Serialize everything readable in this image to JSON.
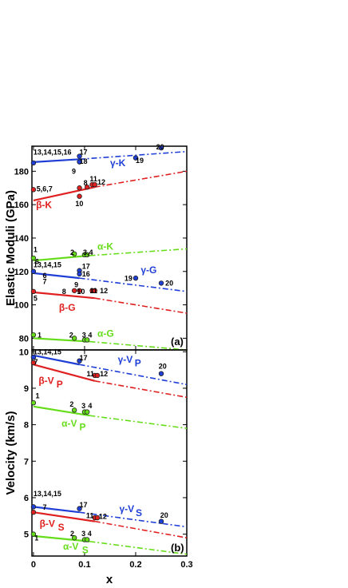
{
  "chart_data": [
    {
      "type": "line",
      "panel": "(a)",
      "ylabel": "Elastic Moduli (GPa)",
      "xlabel": "",
      "xlim": [
        -0.003,
        0.3
      ],
      "ylim": [
        73,
        195
      ],
      "xticks": [
        0,
        0.1,
        0.2,
        0.3
      ],
      "yticks": [
        80,
        100,
        120,
        140,
        160,
        180
      ],
      "xtick_labels": [
        "",
        "",
        "",
        ""
      ],
      "ytick_labels": [
        "80",
        "100",
        "120",
        "140",
        "160",
        "180"
      ],
      "series": [
        {
          "label": "γ-K",
          "color": "#1f3fd6",
          "solid": [
            [
              0,
              185.5
            ],
            [
              0.09,
              187.2
            ]
          ],
          "dashed": [
            [
              0.09,
              187.2
            ],
            [
              0.3,
              191.8
            ]
          ],
          "points": [
            [
              0,
              185
            ],
            [
              0.09,
              189
            ],
            [
              0.09,
              185.6
            ],
            [
              0.2,
              188
            ],
            [
              0.25,
              194
            ]
          ]
        },
        {
          "label": "β-K",
          "color": "#e02020",
          "solid": [
            [
              0,
              162.5
            ],
            [
              0.12,
              170.5
            ]
          ],
          "dashed": [
            [
              0.12,
              170.5
            ],
            [
              0.3,
              180
            ]
          ],
          "points": [
            [
              0,
              169
            ],
            [
              0.09,
              170
            ],
            [
              0.09,
              165
            ],
            [
              0.105,
              170.5
            ],
            [
              0.115,
              172
            ],
            [
              0.12,
              172
            ]
          ]
        },
        {
          "label": "α-K",
          "color": "#66dd1a",
          "solid": [
            [
              0,
              126.5
            ],
            [
              0.11,
              129.5
            ]
          ],
          "dashed": [
            [
              0.11,
              129.5
            ],
            [
              0.3,
              133.5
            ]
          ],
          "points": [
            [
              0,
              128
            ],
            [
              0.08,
              130.5
            ],
            [
              0.1,
              130
            ],
            [
              0.105,
              130
            ]
          ]
        },
        {
          "label": "γ-G",
          "color": "#1f3fd6",
          "solid": [
            [
              0,
              119
            ],
            [
              0.09,
              116
            ]
          ],
          "dashed": [
            [
              0.09,
              116
            ],
            [
              0.3,
              108
            ]
          ],
          "points": [
            [
              0,
              120
            ],
            [
              0.09,
              120.5
            ],
            [
              0.09,
              118.5
            ],
            [
              0.2,
              116
            ],
            [
              0.25,
              113
            ]
          ]
        },
        {
          "label": "β-G",
          "color": "#e02020",
          "solid": [
            [
              0,
              107.5
            ],
            [
              0.12,
              104
            ]
          ],
          "dashed": [
            [
              0.12,
              104
            ],
            [
              0.3,
              95
            ]
          ],
          "points": [
            [
              0,
              108
            ],
            [
              0.08,
              108.5
            ],
            [
              0.09,
              108.5
            ],
            [
              0.115,
              108.5
            ],
            [
              0.12,
              108.5
            ]
          ]
        },
        {
          "label": "α-G",
          "color": "#66dd1a",
          "solid": [
            [
              0,
              80
            ],
            [
              0.11,
              78
            ]
          ],
          "dashed": [
            [
              0.11,
              78
            ],
            [
              0.3,
              73
            ]
          ],
          "points": [
            [
              0,
              82
            ],
            [
              0.08,
              80
            ],
            [
              0.1,
              79
            ],
            [
              0.105,
              79
            ]
          ]
        }
      ],
      "annotations": [
        {
          "text": "13,14,15,16",
          "x": 0.0,
          "y": 190,
          "color": "#000"
        },
        {
          "text": "17",
          "x": 0.09,
          "y": 190,
          "color": "#000"
        },
        {
          "text": "18",
          "x": 0.09,
          "y": 184.5,
          "color": "#000"
        },
        {
          "text": "20",
          "x": 0.24,
          "y": 193,
          "color": "#000"
        },
        {
          "text": "19",
          "x": 0.2,
          "y": 185,
          "color": "#000"
        },
        {
          "text": "γ-K",
          "x": 0.15,
          "y": 183,
          "color": "#1f3fd6"
        },
        {
          "text": "9",
          "x": 0.075,
          "y": 178.5,
          "color": "#000"
        },
        {
          "text": "11",
          "x": 0.11,
          "y": 174,
          "color": "#000"
        },
        {
          "text": "8",
          "x": 0.098,
          "y": 171.5,
          "color": "#000"
        },
        {
          "text": "12",
          "x": 0.125,
          "y": 172,
          "color": "#000"
        },
        {
          "text": "5,6,7",
          "x": 0.006,
          "y": 168,
          "color": "#000"
        },
        {
          "text": "10",
          "x": 0.082,
          "y": 159,
          "color": "#000"
        },
        {
          "text": "β-K",
          "x": 0.005,
          "y": 158,
          "color": "#e02020"
        },
        {
          "text": "α-K",
          "x": 0.125,
          "y": 133,
          "color": "#66dd1a"
        },
        {
          "text": "1",
          "x": 0.0,
          "y": 131.5,
          "color": "#000"
        },
        {
          "text": "6",
          "x": 0.003,
          "y": 124.5,
          "color": "#000"
        },
        {
          "text": "2",
          "x": 0.072,
          "y": 130,
          "color": "#000"
        },
        {
          "text": "3,4",
          "x": 0.097,
          "y": 130,
          "color": "#000"
        },
        {
          "text": "13,14,15",
          "x": 0.0,
          "y": 122.5,
          "color": "#000"
        },
        {
          "text": "17",
          "x": 0.095,
          "y": 121.5,
          "color": "#000"
        },
        {
          "text": "16",
          "x": 0.095,
          "y": 117,
          "color": "#000"
        },
        {
          "text": "γ-G",
          "x": 0.21,
          "y": 119,
          "color": "#1f3fd6"
        },
        {
          "text": "19",
          "x": 0.178,
          "y": 114.5,
          "color": "#000"
        },
        {
          "text": "20",
          "x": 0.258,
          "y": 111.5,
          "color": "#000"
        },
        {
          "text": "6",
          "x": 0.018,
          "y": 116,
          "color": "#000"
        },
        {
          "text": "7",
          "x": 0.018,
          "y": 112.5,
          "color": "#000"
        },
        {
          "text": "9",
          "x": 0.08,
          "y": 110.5,
          "color": "#000"
        },
        {
          "text": "5",
          "x": 0.0,
          "y": 102.5,
          "color": "#000"
        },
        {
          "text": "8",
          "x": 0.056,
          "y": 106.5,
          "color": "#000"
        },
        {
          "text": "10",
          "x": 0.085,
          "y": 106.5,
          "color": "#000"
        },
        {
          "text": "11",
          "x": 0.11,
          "y": 107,
          "color": "#000"
        },
        {
          "text": "12",
          "x": 0.13,
          "y": 107,
          "color": "#000"
        },
        {
          "text": "β-G",
          "x": 0.05,
          "y": 96.5,
          "color": "#e02020"
        },
        {
          "text": "1",
          "x": 0.008,
          "y": 80.5,
          "color": "#000"
        },
        {
          "text": "2",
          "x": 0.07,
          "y": 80.5,
          "color": "#000"
        },
        {
          "text": "3",
          "x": 0.095,
          "y": 80.5,
          "color": "#000"
        },
        {
          "text": "4",
          "x": 0.107,
          "y": 80.5,
          "color": "#000"
        },
        {
          "text": "α-G",
          "x": 0.125,
          "y": 81,
          "color": "#66dd1a"
        }
      ]
    },
    {
      "type": "line",
      "panel": "(b)",
      "ylabel": "Velocity (km/s)",
      "xlabel": "x",
      "xlim": [
        -0.003,
        0.3
      ],
      "ylim": [
        4.4,
        10.05
      ],
      "xticks": [
        0,
        0.1,
        0.2,
        0.3
      ],
      "yticks": [
        5,
        6,
        7,
        8,
        9,
        10
      ],
      "xtick_labels": [
        "0",
        "0.1",
        "0.2",
        "0.3"
      ],
      "ytick_labels": [
        "5",
        "6",
        "7",
        "8",
        "9",
        "10"
      ],
      "series": [
        {
          "label": "γ-VP",
          "color": "#1f3fd6",
          "solid": [
            [
              0,
              9.9
            ],
            [
              0.09,
              9.65
            ]
          ],
          "dashed": [
            [
              0.09,
              9.65
            ],
            [
              0.3,
              9.1
            ]
          ],
          "points": [
            [
              0,
              9.85
            ],
            [
              0.09,
              9.75
            ],
            [
              0.25,
              9.4
            ]
          ]
        },
        {
          "label": "β-VP",
          "color": "#e02020",
          "solid": [
            [
              0,
              9.65
            ],
            [
              0.12,
              9.2
            ]
          ],
          "dashed": [
            [
              0.12,
              9.2
            ],
            [
              0.3,
              8.75
            ]
          ],
          "points": [
            [
              0,
              9.7
            ],
            [
              0.12,
              9.35
            ],
            [
              0.125,
              9.35
            ]
          ]
        },
        {
          "label": "α-VP",
          "color": "#66dd1a",
          "solid": [
            [
              0,
              8.5
            ],
            [
              0.11,
              8.25
            ]
          ],
          "dashed": [
            [
              0.11,
              8.25
            ],
            [
              0.3,
              7.9
            ]
          ],
          "points": [
            [
              0,
              8.6
            ],
            [
              0.08,
              8.4
            ],
            [
              0.1,
              8.35
            ],
            [
              0.105,
              8.35
            ]
          ]
        },
        {
          "label": "γ-VS",
          "color": "#1f3fd6",
          "solid": [
            [
              0,
              5.75
            ],
            [
              0.09,
              5.6
            ]
          ],
          "dashed": [
            [
              0.09,
              5.6
            ],
            [
              0.3,
              5.2
            ]
          ],
          "points": [
            [
              0,
              5.75
            ],
            [
              0.09,
              5.7
            ],
            [
              0.25,
              5.35
            ]
          ]
        },
        {
          "label": "β-VS",
          "color": "#e02020",
          "solid": [
            [
              0,
              5.6
            ],
            [
              0.12,
              5.35
            ]
          ],
          "dashed": [
            [
              0.12,
              5.35
            ],
            [
              0.3,
              4.9
            ]
          ],
          "points": [
            [
              0,
              5.6
            ],
            [
              0.12,
              5.45
            ],
            [
              0.125,
              5.45
            ]
          ]
        },
        {
          "label": "α-VS",
          "color": "#66dd1a",
          "solid": [
            [
              0,
              4.95
            ],
            [
              0.11,
              4.8
            ]
          ],
          "dashed": [
            [
              0.11,
              4.8
            ],
            [
              0.3,
              4.45
            ]
          ],
          "points": [
            [
              0,
              5.0
            ],
            [
              0.08,
              4.9
            ],
            [
              0.1,
              4.85
            ],
            [
              0.105,
              4.85
            ]
          ]
        }
      ],
      "annotations": [
        {
          "text": "13,14,15",
          "x": 0.0,
          "y": 9.93,
          "color": "#000"
        },
        {
          "text": "17",
          "x": 0.09,
          "y": 9.77,
          "color": "#000"
        },
        {
          "text": "7",
          "x": 0.001,
          "y": 9.66,
          "color": "#000"
        },
        {
          "text": "γ-V",
          "x": 0.165,
          "y": 9.7,
          "color": "#1f3fd6"
        },
        {
          "text": "P",
          "x": 0.198,
          "y": 9.6,
          "color": "#1f3fd6"
        },
        {
          "text": "20",
          "x": 0.245,
          "y": 9.54,
          "color": "#000"
        },
        {
          "text": "11",
          "x": 0.104,
          "y": 9.33,
          "color": "#000"
        },
        {
          "text": "12",
          "x": 0.13,
          "y": 9.33,
          "color": "#000"
        },
        {
          "text": "β-V",
          "x": 0.01,
          "y": 9.12,
          "color": "#e02020"
        },
        {
          "text": "P",
          "x": 0.045,
          "y": 9.02,
          "color": "#e02020"
        },
        {
          "text": "1",
          "x": 0.004,
          "y": 8.72,
          "color": "#000"
        },
        {
          "text": "2",
          "x": 0.071,
          "y": 8.5,
          "color": "#000"
        },
        {
          "text": "3",
          "x": 0.094,
          "y": 8.45,
          "color": "#000"
        },
        {
          "text": "4",
          "x": 0.107,
          "y": 8.45,
          "color": "#000"
        },
        {
          "text": "α-V",
          "x": 0.055,
          "y": 7.95,
          "color": "#66dd1a"
        },
        {
          "text": "P",
          "x": 0.09,
          "y": 7.85,
          "color": "#66dd1a"
        },
        {
          "text": "13,14,15",
          "x": 0.0,
          "y": 6.04,
          "color": "#000"
        },
        {
          "text": "17",
          "x": 0.09,
          "y": 5.74,
          "color": "#000"
        },
        {
          "text": "7",
          "x": 0.018,
          "y": 5.67,
          "color": "#000"
        },
        {
          "text": "γ-V",
          "x": 0.168,
          "y": 5.6,
          "color": "#1f3fd6"
        },
        {
          "text": "S",
          "x": 0.2,
          "y": 5.5,
          "color": "#1f3fd6"
        },
        {
          "text": "20",
          "x": 0.248,
          "y": 5.45,
          "color": "#000"
        },
        {
          "text": "11",
          "x": 0.103,
          "y": 5.44,
          "color": "#000"
        },
        {
          "text": "12",
          "x": 0.128,
          "y": 5.42,
          "color": "#000"
        },
        {
          "text": "β-V",
          "x": 0.012,
          "y": 5.2,
          "color": "#e02020"
        },
        {
          "text": "S",
          "x": 0.048,
          "y": 5.1,
          "color": "#e02020"
        },
        {
          "text": "2",
          "x": 0.072,
          "y": 4.95,
          "color": "#000"
        },
        {
          "text": "3",
          "x": 0.094,
          "y": 4.95,
          "color": "#000"
        },
        {
          "text": "4",
          "x": 0.106,
          "y": 4.95,
          "color": "#000"
        },
        {
          "text": "1",
          "x": 0.002,
          "y": 4.83,
          "color": "#000"
        },
        {
          "text": "α-V",
          "x": 0.058,
          "y": 4.58,
          "color": "#66dd1a"
        },
        {
          "text": "S",
          "x": 0.095,
          "y": 4.48,
          "color": "#66dd1a"
        }
      ]
    }
  ]
}
